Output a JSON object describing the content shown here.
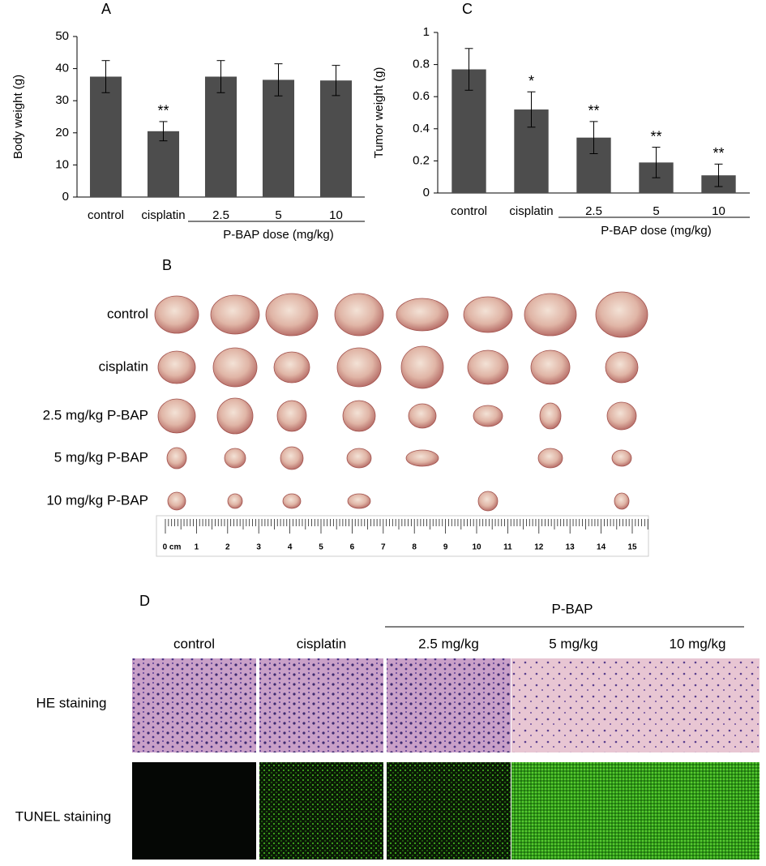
{
  "chart_data": [
    {
      "type": "bar",
      "panel": "A",
      "ylabel": "Body weight (g)",
      "categories": [
        "control",
        "cisplatin",
        "2.5",
        "5",
        "10"
      ],
      "values": [
        37.5,
        20.5,
        37.5,
        36.5,
        36.3
      ],
      "errors": [
        5,
        3,
        5,
        5,
        4.7
      ],
      "significance": [
        null,
        "**",
        null,
        null,
        null
      ],
      "group_label": "P-BAP dose (mg/kg)",
      "color": "#4d4d4d",
      "ylim": [
        0,
        50
      ],
      "yticks": [
        0,
        10,
        20,
        30,
        40,
        50
      ]
    },
    {
      "type": "bar",
      "panel": "C",
      "ylabel": "Tumor weight (g)",
      "categories": [
        "control",
        "cisplatin",
        "2.5",
        "5",
        "10"
      ],
      "values": [
        0.77,
        0.52,
        0.345,
        0.19,
        0.11
      ],
      "errors": [
        0.13,
        0.11,
        0.1,
        0.095,
        0.07
      ],
      "significance": [
        null,
        "*",
        "**",
        "**",
        "**"
      ],
      "group_label": "P-BAP dose (mg/kg)",
      "color": "#4d4d4d",
      "ylim": [
        0,
        1
      ],
      "yticks": [
        0,
        0.2,
        0.4,
        0.6,
        0.8,
        1
      ]
    }
  ],
  "tumor_panel": {
    "panel": "B",
    "rows": [
      "control",
      "cisplatin",
      "2.5 mg/kg P-BAP",
      "5 mg/kg P-BAP",
      "10 mg/kg P-BAP"
    ],
    "ruler_labels": [
      "0 cm",
      "1",
      "2",
      "3",
      "4",
      "5",
      "6",
      "7",
      "8",
      "9",
      "10",
      "11",
      "12",
      "13",
      "14",
      "15"
    ]
  },
  "histology_panel": {
    "panel": "D",
    "group": "P-BAP",
    "columns": [
      "control",
      "cisplatin",
      "2.5 mg/kg",
      "5 mg/kg",
      "10 mg/kg"
    ],
    "rows": [
      "HE staining",
      "TUNEL staining"
    ]
  }
}
